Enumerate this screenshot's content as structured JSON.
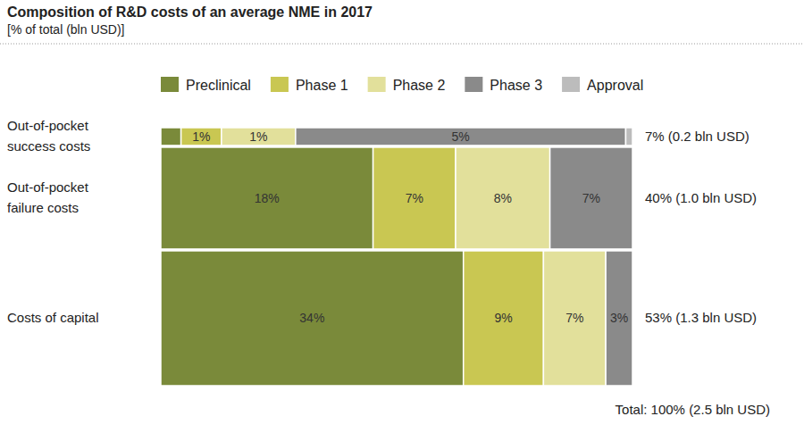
{
  "chart_data": {
    "type": "bar",
    "orientation": "horizontal",
    "stacked": true,
    "data_labels": true,
    "tick_labels": "y",
    "legend": "top",
    "title": "Composition of R&D costs of an average NME in 2017",
    "subtitle": "[% of total (bln USD)]",
    "categories": [
      "Out-of-pocket\nsuccess costs",
      "Out-of-pocket\nfailure costs",
      "Costs of capital"
    ],
    "row_totals": [
      7,
      40,
      53
    ],
    "row_total_labels": [
      "7% (0.2 bln USD)",
      "40%  (1.0 bln USD)",
      "53% (1.3 bln USD)"
    ],
    "total_label": "Total: 100% (2.5 bln USD)",
    "series": [
      {
        "name": "Preclinical",
        "color": "#7a8a3a",
        "values": [
          0.3,
          18,
          34
        ],
        "value_labels": [
          null,
          "18%",
          "34%"
        ]
      },
      {
        "name": "Phase 1",
        "color": "#c9c752",
        "values": [
          0.6,
          7,
          9
        ],
        "value_labels": [
          "1%",
          "7%",
          "9%"
        ]
      },
      {
        "name": "Phase 2",
        "color": "#e2e09b",
        "values": [
          1.1,
          8,
          7
        ],
        "value_labels": [
          "1%",
          "8%",
          "7%"
        ]
      },
      {
        "name": "Phase 3",
        "color": "#8a8a8a",
        "values": [
          4.9,
          7,
          3
        ],
        "value_labels": [
          "5%",
          "7%",
          "3%"
        ]
      },
      {
        "name": "Approval",
        "color": "#bcbcbc",
        "values": [
          0.1,
          0,
          0
        ],
        "value_labels": [
          null,
          null,
          null
        ]
      }
    ]
  }
}
